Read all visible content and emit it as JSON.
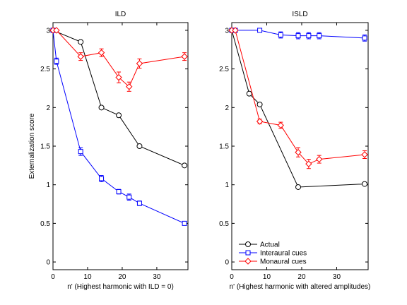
{
  "chart_data": [
    {
      "type": "line",
      "title": "ILD",
      "xlabel": "n' (Highest harmonic with ILD = 0)",
      "ylabel": "Externalization score",
      "xlim": [
        0,
        39
      ],
      "ylim": [
        -0.1,
        3.1
      ],
      "xticks": [
        0,
        10,
        20,
        30
      ],
      "yticks": [
        0,
        0.5,
        1,
        1.5,
        2,
        2.5,
        3
      ],
      "grid": false,
      "series": [
        {
          "name": "Actual",
          "color": "#000000",
          "marker": "circle",
          "x": [
            0,
            8,
            14,
            19,
            25,
            38
          ],
          "y": [
            3.0,
            2.85,
            2.0,
            1.9,
            1.5,
            1.25
          ],
          "err": [
            0,
            0,
            0,
            0,
            0,
            0
          ]
        },
        {
          "name": "Interaural cues",
          "color": "#0000ff",
          "marker": "square",
          "x": [
            0,
            1,
            8,
            14,
            19,
            22,
            25,
            38
          ],
          "y": [
            3.0,
            2.6,
            1.43,
            1.08,
            0.91,
            0.84,
            0.76,
            0.5
          ],
          "err": [
            0,
            0.04,
            0.05,
            0.04,
            0.03,
            0.04,
            0.03,
            0.01
          ]
        },
        {
          "name": "Monaural cues",
          "color": "#ff0000",
          "marker": "diamond",
          "x": [
            0,
            1,
            8,
            14,
            19,
            22,
            25,
            38
          ],
          "y": [
            3.0,
            3.0,
            2.66,
            2.71,
            2.39,
            2.27,
            2.57,
            2.66
          ],
          "err": [
            0,
            0,
            0.05,
            0.05,
            0.07,
            0.06,
            0.06,
            0.05
          ]
        }
      ]
    },
    {
      "type": "line",
      "title": "ISLD",
      "xlabel": "n' (Highest harmonic with altered amplitudes)",
      "ylabel": "",
      "xlim": [
        0,
        39
      ],
      "ylim": [
        -0.1,
        3.1
      ],
      "xticks": [
        0,
        10,
        20,
        30
      ],
      "yticks": [
        0,
        0.5,
        1,
        1.5,
        2,
        2.5,
        3
      ],
      "grid": false,
      "legend": "bottom-left",
      "series": [
        {
          "name": "Actual",
          "color": "#000000",
          "marker": "circle",
          "x": [
            0,
            5,
            8,
            19,
            38
          ],
          "y": [
            3.0,
            2.18,
            2.04,
            0.97,
            1.01
          ],
          "err": [
            0,
            0,
            0,
            0,
            0
          ]
        },
        {
          "name": "Interaural cues",
          "color": "#0000ff",
          "marker": "square",
          "x": [
            0,
            1,
            8,
            14,
            19,
            22,
            25,
            38
          ],
          "y": [
            3.0,
            3.0,
            3.0,
            2.94,
            2.93,
            2.93,
            2.93,
            2.9
          ],
          "err": [
            0,
            0,
            0,
            0.04,
            0.04,
            0.04,
            0.04,
            0.04
          ]
        },
        {
          "name": "Monaural cues",
          "color": "#ff0000",
          "marker": "diamond",
          "x": [
            0,
            1,
            8,
            14,
            19,
            22,
            25,
            38
          ],
          "y": [
            3.0,
            3.0,
            1.82,
            1.77,
            1.42,
            1.27,
            1.33,
            1.39
          ],
          "err": [
            0,
            0,
            0.03,
            0.04,
            0.06,
            0.06,
            0.05,
            0.05
          ]
        }
      ]
    }
  ]
}
